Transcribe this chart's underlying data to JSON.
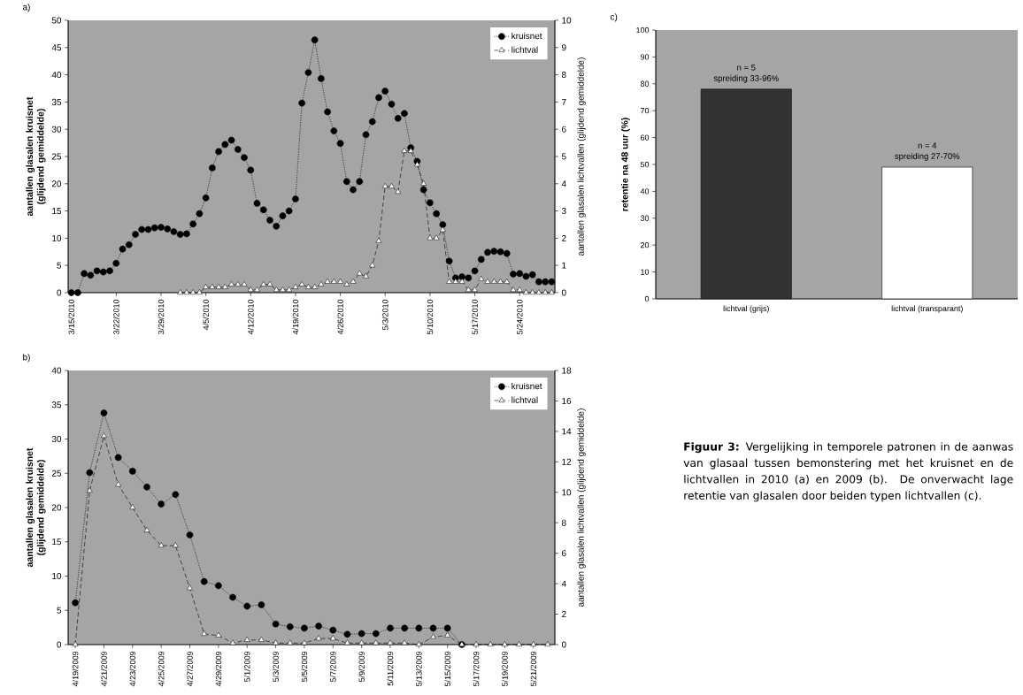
{
  "chart_data": [
    {
      "type": "line",
      "title": "a)",
      "ylabel": "aantallen glasalen kruisnet (glijdend gemiddelde)",
      "y2label": "aantallen glasalen lichtvallen (glijdend gemiddelde)",
      "x": [
        "2010-03-15",
        "2010-03-16",
        "2010-03-17",
        "2010-03-18",
        "2010-03-19",
        "2010-03-20",
        "2010-03-21",
        "2010-03-22",
        "2010-03-23",
        "2010-03-24",
        "2010-03-25",
        "2010-03-26",
        "2010-03-27",
        "2010-03-28",
        "2010-03-29",
        "2010-03-30",
        "2010-03-31",
        "2010-04-01",
        "2010-04-02",
        "2010-04-03",
        "2010-04-04",
        "2010-04-05",
        "2010-04-06",
        "2010-04-07",
        "2010-04-08",
        "2010-04-09",
        "2010-04-10",
        "2010-04-11",
        "2010-04-12",
        "2010-04-13",
        "2010-04-14",
        "2010-04-15",
        "2010-04-16",
        "2010-04-17",
        "2010-04-18",
        "2010-04-19",
        "2010-04-20",
        "2010-04-21",
        "2010-04-22",
        "2010-04-23",
        "2010-04-24",
        "2010-04-25",
        "2010-04-26",
        "2010-04-27",
        "2010-04-28",
        "2010-04-29",
        "2010-04-30",
        "2010-05-01",
        "2010-05-02",
        "2010-05-03",
        "2010-05-04",
        "2010-05-05",
        "2010-05-06",
        "2010-05-07",
        "2010-05-08",
        "2010-05-09",
        "2010-05-10",
        "2010-05-11",
        "2010-05-12",
        "2010-05-13",
        "2010-05-14",
        "2010-05-15",
        "2010-05-16",
        "2010-05-17",
        "2010-05-18",
        "2010-05-19",
        "2010-05-20",
        "2010-05-21",
        "2010-05-22",
        "2010-05-23",
        "2010-05-24",
        "2010-05-25",
        "2010-05-26",
        "2010-05-27",
        "2010-05-28",
        "2010-05-29"
      ],
      "xlim": [
        "2010-03-14T12:00",
        "2010-05-29T12:00"
      ],
      "xticks": [
        {
          "value": "2010-03-15",
          "label": "3/15/2010"
        },
        {
          "value": "2010-03-22",
          "label": "3/22/2010"
        },
        {
          "value": "2010-03-29",
          "label": "3/29/2010"
        },
        {
          "value": "2010-04-05",
          "label": "4/5/2010"
        },
        {
          "value": "2010-04-12",
          "label": "4/12/2010"
        },
        {
          "value": "2010-04-19",
          "label": "4/19/2010"
        },
        {
          "value": "2010-04-26",
          "label": "4/26/2010"
        },
        {
          "value": "2010-05-03",
          "label": "5/3/2010"
        },
        {
          "value": "2010-05-10",
          "label": "5/10/2010"
        },
        {
          "value": "2010-05-17",
          "label": "5/17/2010"
        },
        {
          "value": "2010-05-24",
          "label": "5/24/2010"
        }
      ],
      "ylim": [
        0,
        50
      ],
      "yticks": [
        0,
        5,
        10,
        15,
        20,
        25,
        30,
        35,
        40,
        45,
        50
      ],
      "y2lim": [
        0,
        10
      ],
      "y2ticks": [
        0,
        1,
        2,
        3,
        4,
        5,
        6,
        7,
        8,
        9,
        10
      ],
      "legend": "top right",
      "series": [
        {
          "name": "kruisnet",
          "color": "#000000",
          "marker": "circle",
          "line_style": "dotted",
          "values": [
            0,
            0,
            3.5,
            3.2,
            4.0,
            3.8,
            4.0,
            5.4,
            8.0,
            8.8,
            10.7,
            11.6,
            11.6,
            11.9,
            12.0,
            11.7,
            11.2,
            10.7,
            10.8,
            12.6,
            14.5,
            17.4,
            22.9,
            25.9,
            27.2,
            28.0,
            26.3,
            24.8,
            22.5,
            16.4,
            15.2,
            13.3,
            12.2,
            14.1,
            15.0,
            17.2,
            34.8,
            40.4,
            46.4,
            39.3,
            33.2,
            29.7,
            27.4,
            20.4,
            18.9,
            20.4,
            29.0,
            31.4,
            35.8,
            37.0,
            34.6,
            32.0,
            32.9,
            26.6,
            24.1,
            18.9,
            16.5,
            14.5,
            12.5,
            5.8,
            2.7,
            2.9,
            2.7,
            4.0,
            6.1,
            7.4,
            7.6,
            7.5,
            7.2,
            3.4,
            3.5,
            3.0,
            3.3,
            2.0,
            2.0,
            2.0
          ]
        },
        {
          "name": "lichtval",
          "color": "#000000",
          "marker": "triangle",
          "line_style": "dashed",
          "axis": "y2",
          "values": [
            null,
            null,
            null,
            null,
            null,
            null,
            null,
            null,
            null,
            null,
            null,
            null,
            null,
            null,
            null,
            null,
            null,
            0,
            0,
            0,
            0,
            0.2,
            0.2,
            0.2,
            0.2,
            0.3,
            0.3,
            0.3,
            0.1,
            0.1,
            0.3,
            0.3,
            0.1,
            0.1,
            0.1,
            0.2,
            0.3,
            0.2,
            0.2,
            0.3,
            0.4,
            0.4,
            0.4,
            0.3,
            0.4,
            0.7,
            0.6,
            1.0,
            1.9,
            3.9,
            3.9,
            3.7,
            5.2,
            5.2,
            4.7,
            4.0,
            2.0,
            2.0,
            2.3,
            0.4,
            0.4,
            0.4,
            0.1,
            0.1,
            0.5,
            0.4,
            0.4,
            0.4,
            0.4,
            0.1,
            0.1,
            0,
            0,
            0,
            0,
            0
          ]
        }
      ]
    },
    {
      "type": "line",
      "title": "b)",
      "ylabel": "aantallen glasalen kruisnet (glijdend gemiddelde)",
      "y2label": "aantallen glasalen lichtvallen (glijdend gemiddelde)",
      "x": [
        "2009-04-19",
        "2009-04-20",
        "2009-04-21",
        "2009-04-22",
        "2009-04-23",
        "2009-04-24",
        "2009-04-25",
        "2009-04-26",
        "2009-04-27",
        "2009-04-28",
        "2009-04-29",
        "2009-04-30",
        "2009-05-01",
        "2009-05-02",
        "2009-05-03",
        "2009-05-04",
        "2009-05-05",
        "2009-05-06",
        "2009-05-07",
        "2009-05-08",
        "2009-05-09",
        "2009-05-10",
        "2009-05-11",
        "2009-05-12",
        "2009-05-13",
        "2009-05-14",
        "2009-05-15",
        "2009-05-16",
        "2009-05-17",
        "2009-05-18",
        "2009-05-19",
        "2009-05-20",
        "2009-05-21",
        "2009-05-22"
      ],
      "xlim": [
        "2009-04-18T12:00",
        "2009-05-22T12:00"
      ],
      "xticks": [
        {
          "value": "2009-04-19",
          "label": "4/19/2009"
        },
        {
          "value": "2009-04-21",
          "label": "4/21/2009"
        },
        {
          "value": "2009-04-23",
          "label": "4/23/2009"
        },
        {
          "value": "2009-04-25",
          "label": "4/25/2009"
        },
        {
          "value": "2009-04-27",
          "label": "4/27/2009"
        },
        {
          "value": "2009-04-29",
          "label": "4/29/2009"
        },
        {
          "value": "2009-05-01",
          "label": "5/1/2009"
        },
        {
          "value": "2009-05-03",
          "label": "5/3/2009"
        },
        {
          "value": "2009-05-05",
          "label": "5/5/2009"
        },
        {
          "value": "2009-05-07",
          "label": "5/7/2009"
        },
        {
          "value": "2009-05-09",
          "label": "5/9/2009"
        },
        {
          "value": "2009-05-11",
          "label": "5/11/2009"
        },
        {
          "value": "2009-05-13",
          "label": "5/13/2009"
        },
        {
          "value": "2009-05-15",
          "label": "5/15/2009"
        },
        {
          "value": "2009-05-17",
          "label": "5/17/2009"
        },
        {
          "value": "2009-05-19",
          "label": "5/19/2009"
        },
        {
          "value": "2009-05-21",
          "label": "5/21/2009"
        }
      ],
      "ylim": [
        0,
        40
      ],
      "yticks": [
        0,
        5,
        10,
        15,
        20,
        25,
        30,
        35,
        40
      ],
      "y2lim": [
        0,
        18
      ],
      "y2ticks": [
        0,
        2,
        4,
        6,
        8,
        10,
        12,
        14,
        16,
        18
      ],
      "legend": "top right",
      "series": [
        {
          "name": "kruisnet",
          "color": "#000000",
          "marker": "circle",
          "line_style": "dotted",
          "values": [
            6.1,
            25.1,
            33.8,
            27.3,
            25.3,
            23.0,
            20.5,
            21.9,
            16.0,
            9.2,
            8.6,
            6.9,
            5.6,
            5.8,
            3.0,
            2.6,
            2.4,
            2.7,
            2.1,
            1.5,
            1.6,
            1.6,
            2.4,
            2.4,
            2.4,
            2.4,
            2.4,
            0,
            null,
            null,
            null,
            null,
            null,
            null
          ]
        },
        {
          "name": "lichtval",
          "color": "#000000",
          "marker": "triangle",
          "line_style": "dashed",
          "axis": "y2",
          "values": [
            0,
            10.1,
            13.7,
            10.5,
            9.0,
            7.5,
            6.5,
            6.5,
            3.7,
            0.7,
            0.6,
            0.1,
            0.3,
            0.3,
            0.1,
            0.1,
            0.1,
            0.4,
            0.4,
            0.1,
            0.1,
            0.1,
            0.1,
            0.1,
            0,
            0.5,
            0.6,
            0,
            0,
            0,
            0,
            0,
            0,
            0
          ]
        }
      ]
    },
    {
      "type": "bar",
      "title": "c)",
      "ylabel": "retentie na 48 uur (%)",
      "categories": [
        "lichtval (grijs)",
        "lichtval (transparant)"
      ],
      "values": [
        78,
        49
      ],
      "colors": [
        "#333333",
        "#ffffff"
      ],
      "ylim": [
        0,
        100
      ],
      "yticks": [
        0,
        10,
        20,
        30,
        40,
        50,
        60,
        70,
        80,
        90,
        100
      ],
      "annotations": [
        {
          "text": "n = 5",
          "x": "lichtval (grijs)",
          "y": 78
        },
        {
          "text": "spreiding 33-96%",
          "x": "lichtval (grijs)",
          "y": 78
        },
        {
          "text": "n = 4",
          "x": "lichtval (transparant)",
          "y": 49
        },
        {
          "text": "spreiding 27-70%",
          "x": "lichtval (transparant)",
          "y": 49
        }
      ]
    },
    {
      "type": "other",
      "annotations": [
        "**Figuur 3:** Vergelijking in temporele patronen in de aanwas van glasaal tussen bemonstering met het kruisnet en de lichtvallen in 2010 (a) en 2009 (b). De onverwacht lage retentie van glasalen door beiden typen lichtvallen (c)."
      ]
    }
  ]
}
